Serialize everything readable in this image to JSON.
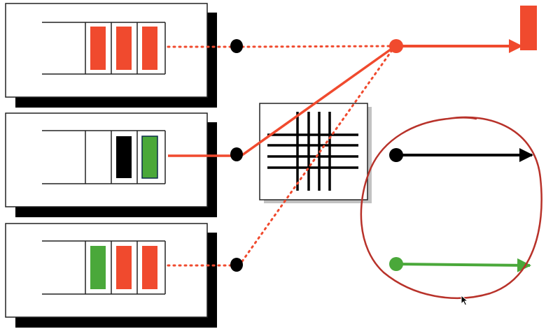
{
  "colors": {
    "background": "#ffffff",
    "red": "#f04a2e",
    "green": "#4aa83a",
    "black": "#000000",
    "annotation": "#b8322a",
    "shadow": "#000000",
    "box_border": "#222222"
  },
  "queues": [
    {
      "name": "queue-top",
      "slots": [
        "empty",
        "red",
        "red",
        "red"
      ]
    },
    {
      "name": "queue-middle",
      "slots": [
        "empty",
        "empty",
        "black",
        "green"
      ]
    },
    {
      "name": "queue-bottom",
      "slots": [
        "empty",
        "green",
        "red",
        "red"
      ]
    }
  ],
  "crossbar": {
    "lines": 4,
    "icon": "crossbar-grid-icon"
  },
  "outputs": [
    {
      "name": "output-red",
      "color": "red",
      "end": "bar"
    },
    {
      "name": "output-black",
      "color": "black",
      "end": "arrow"
    },
    {
      "name": "output-green",
      "color": "green",
      "end": "arrow"
    }
  ],
  "connections": [
    {
      "from": "queue-top",
      "style": "dotted",
      "color": "red"
    },
    {
      "from": "queue-middle",
      "style": "solid",
      "color": "red"
    },
    {
      "from": "queue-bottom",
      "style": "dotted",
      "color": "red"
    }
  ],
  "annotation": {
    "shape": "hand-drawn-circle",
    "color": "annotation"
  }
}
